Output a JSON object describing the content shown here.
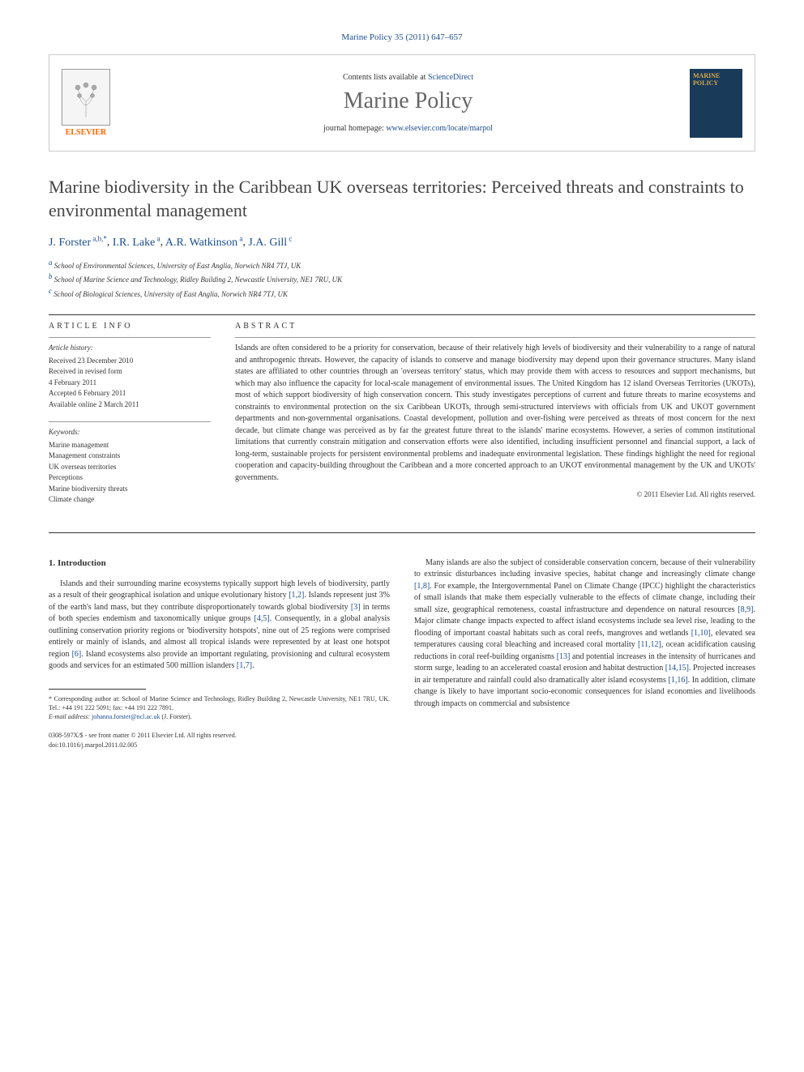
{
  "journal_ref": "Marine Policy 35 (2011) 647–657",
  "header": {
    "elsevier": "ELSEVIER",
    "contents_prefix": "Contents lists available at ",
    "contents_link": "ScienceDirect",
    "journal_name": "Marine Policy",
    "homepage_prefix": "journal homepage: ",
    "homepage_url": "www.elsevier.com/locate/marpol",
    "cover_title": "MARINE POLICY"
  },
  "title": "Marine biodiversity in the Caribbean UK overseas territories: Perceived threats and constraints to environmental management",
  "authors_html": "J. Forster",
  "authors": [
    {
      "name": "J. Forster",
      "sup": "a,b,*"
    },
    {
      "name": "I.R. Lake",
      "sup": "a"
    },
    {
      "name": "A.R. Watkinson",
      "sup": "a"
    },
    {
      "name": "J.A. Gill",
      "sup": "c"
    }
  ],
  "affiliations": [
    {
      "sup": "a",
      "text": "School of Environmental Sciences, University of East Anglia, Norwich NR4 7TJ, UK"
    },
    {
      "sup": "b",
      "text": "School of Marine Science and Technology, Ridley Building 2, Newcastle University, NE1 7RU, UK"
    },
    {
      "sup": "c",
      "text": "School of Biological Sciences, University of East Anglia, Norwich NR4 7TJ, UK"
    }
  ],
  "article_info": {
    "heading": "ARTICLE INFO",
    "history_head": "Article history:",
    "history": [
      "Received 23 December 2010",
      "Received in revised form",
      "4 February 2011",
      "Accepted 6 February 2011",
      "Available online 2 March 2011"
    ],
    "keywords_head": "Keywords:",
    "keywords": [
      "Marine management",
      "Management constraints",
      "UK overseas territories",
      "Perceptions",
      "Marine biodiversity threats",
      "Climate change"
    ]
  },
  "abstract": {
    "heading": "ABSTRACT",
    "text": "Islands are often considered to be a priority for conservation, because of their relatively high levels of biodiversity and their vulnerability to a range of natural and anthropogenic threats. However, the capacity of islands to conserve and manage biodiversity may depend upon their governance structures. Many island states are affiliated to other countries through an 'overseas territory' status, which may provide them with access to resources and support mechanisms, but which may also influence the capacity for local-scale management of environmental issues. The United Kingdom has 12 island Overseas Territories (UKOTs), most of which support biodiversity of high conservation concern. This study investigates perceptions of current and future threats to marine ecosystems and constraints to environmental protection on the six Caribbean UKOTs, through semi-structured interviews with officials from UK and UKOT government departments and non-governmental organisations. Coastal development, pollution and over-fishing were perceived as threats of most concern for the next decade, but climate change was perceived as by far the greatest future threat to the islands' marine ecosystems. However, a series of common institutional limitations that currently constrain mitigation and conservation efforts were also identified, including insufficient personnel and financial support, a lack of long-term, sustainable projects for persistent environmental problems and inadequate environmental legislation. These findings highlight the need for regional cooperation and capacity-building throughout the Caribbean and a more concerted approach to an UKOT environmental management by the UK and UKOTs' governments.",
    "copyright": "© 2011 Elsevier Ltd. All rights reserved."
  },
  "section1": {
    "heading": "1. Introduction",
    "para1_parts": [
      "Islands and their surrounding marine ecosystems typically support high levels of biodiversity, partly as a result of their geographical isolation and unique evolutionary history ",
      "[1,2]",
      ". Islands represent just 3% of the earth's land mass, but they contribute disproportionately towards global biodiversity ",
      "[3]",
      " in terms of both species endemism and taxonomically unique groups ",
      "[4,5]",
      ". Consequently, in a global analysis outlining conservation priority regions or 'biodiversity hotspots', nine out of 25 regions were comprised entirely or mainly of islands, and almost all tropical islands were represented by at least one hotspot region ",
      "[6]",
      ". Island ecosystems also provide an important regulating, provisioning and cultural ecosystem goods and services for an estimated 500 million islanders ",
      "[1,7]",
      "."
    ],
    "para2_parts": [
      "Many islands are also the subject of considerable conservation concern, because of their vulnerability to extrinsic disturbances including invasive species, habitat change and increasingly climate change ",
      "[1,8]",
      ". For example, the Intergovernmental Panel on Climate Change (IPCC) highlight the characteristics of small islands that make them especially vulnerable to the effects of climate change, including their small size, geographical remoteness, coastal infrastructure and dependence on natural resources ",
      "[8,9]",
      ". Major climate change impacts expected to affect island ecosystems include sea level rise, leading to the flooding of important coastal habitats such as coral reefs, mangroves and wetlands ",
      "[1,10]",
      ", elevated sea temperatures causing coral bleaching and increased coral mortality ",
      "[11,12]",
      ", ocean acidification causing reductions in coral reef-building organisms ",
      "[13]",
      " and potential increases in the intensity of hurricanes and storm surge, leading to an accelerated coastal erosion and habitat destruction ",
      "[14,15]",
      ". Projected increases in air temperature and rainfall could also dramatically alter island ecosystems ",
      "[1,16]",
      ". In addition, climate change is likely to have important socio-economic consequences for island economies and livelihoods through impacts on commercial and subsistence"
    ]
  },
  "footnote": {
    "corr": "* Corresponding author at: School of Marine Science and Technology, Ridley Building 2, Newcastle University, NE1 7RU, UK. Tel.: +44 191 222 5091; fax: +44 191 222 7891.",
    "email_label": "E-mail address:",
    "email": "johanna.forster@ncl.ac.uk",
    "email_who": "(J. Forster)."
  },
  "doi": {
    "line1": "0308-597X/$ - see front matter © 2011 Elsevier Ltd. All rights reserved.",
    "line2": "doi:10.1016/j.marpol.2011.02.005"
  },
  "colors": {
    "link": "#1a4d8f",
    "elsevier_orange": "#ff6600",
    "text": "#333333",
    "cover_bg": "#1a3a5a",
    "cover_title": "#d4a84b"
  }
}
